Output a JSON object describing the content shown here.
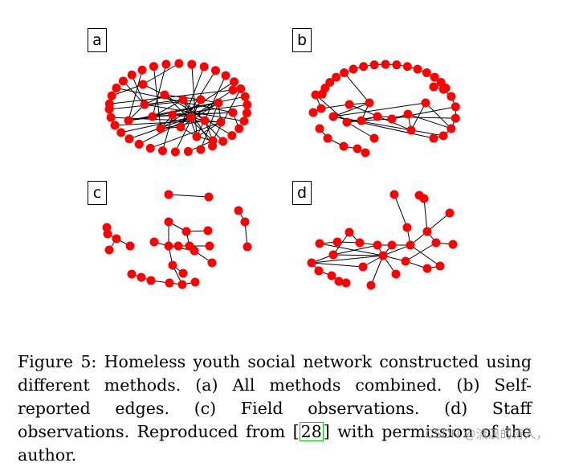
{
  "panels": [
    {
      "label": "a"
    },
    {
      "label": "b"
    },
    {
      "label": "c"
    },
    {
      "label": "d"
    }
  ],
  "caption": {
    "before": "Figure 5: Homeless youth social network constructed using different methods. (a) All methods combined. (b) Self-reported edges. (c) Field observations. (d) Staff observations. Reproduced from [",
    "ref": "28",
    "after": "] with permission of the author."
  },
  "watermark": "CSDN @流浪的诗人，",
  "colors": {
    "node": "#ff0000",
    "edge": "#000000",
    "citation_box": "#00d000"
  }
}
